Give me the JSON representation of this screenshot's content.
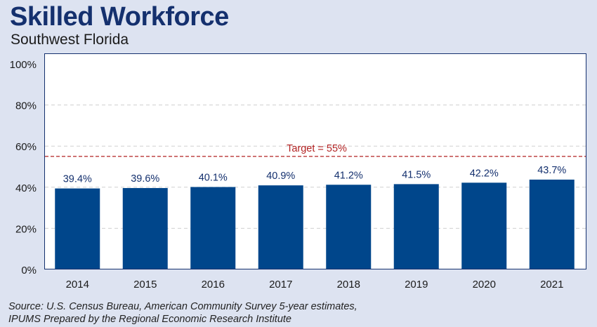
{
  "header": {
    "title": "Skilled Workforce",
    "subtitle": "Southwest Florida"
  },
  "footer": {
    "source_line1": "Source: U.S. Census Bureau, American Community Survey 5-year estimates,",
    "source_line2": "IPUMS Prepared by the Regional Economic Research Institute"
  },
  "colors": {
    "bar": "#00468b",
    "title": "#14306e",
    "target_line": "#b22222",
    "grid": "#d0d0d0",
    "background": "#dde3f1"
  },
  "chart_data": {
    "type": "bar",
    "title": "Skilled Workforce",
    "subtitle": "Southwest Florida",
    "categories": [
      "2014",
      "2015",
      "2016",
      "2017",
      "2018",
      "2019",
      "2020",
      "2021"
    ],
    "values": [
      39.4,
      39.6,
      40.1,
      40.9,
      41.2,
      41.5,
      42.2,
      43.7
    ],
    "value_labels": [
      "39.4%",
      "39.6%",
      "40.1%",
      "40.9%",
      "41.2%",
      "41.5%",
      "42.2%",
      "43.7%"
    ],
    "ylim": [
      0,
      100
    ],
    "yticks": [
      0,
      20,
      40,
      60,
      80,
      100
    ],
    "ytick_labels": [
      "0%",
      "20%",
      "40%",
      "60%",
      "80%",
      "100%"
    ],
    "grid": true,
    "target": {
      "value": 55,
      "label": "Target = 55%"
    }
  }
}
